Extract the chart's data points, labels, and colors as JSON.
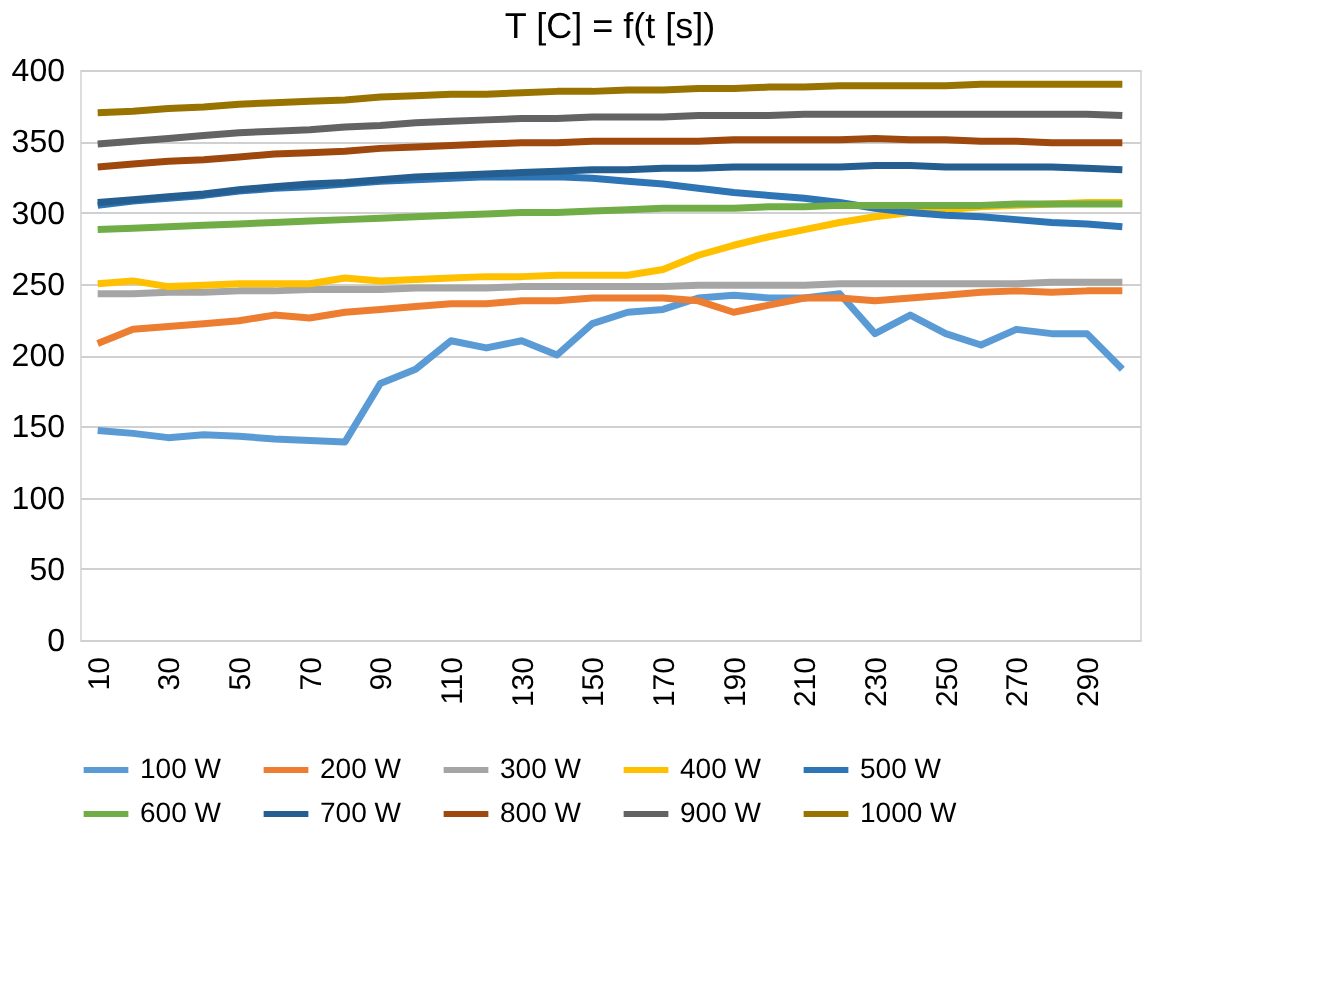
{
  "chart_data": {
    "type": "line",
    "title": "T [C] = f(t [s])",
    "categories": [
      "10",
      null,
      "30",
      null,
      "50",
      null,
      "70",
      null,
      "90",
      null,
      "110",
      null,
      "130",
      null,
      "150",
      null,
      "170",
      null,
      "190",
      null,
      "210",
      null,
      "230",
      null,
      "250",
      null,
      "270",
      null,
      "290",
      null
    ],
    "ylim": [
      0,
      400
    ],
    "yticks": [
      0,
      50,
      100,
      150,
      200,
      250,
      300,
      350,
      400
    ],
    "grid": "y",
    "legend": "bottom",
    "marker": "none",
    "line_style": "solid",
    "series": [
      {
        "name": "100 W",
        "color": "#5b9bd5",
        "values": [
          147,
          145,
          142,
          144,
          143,
          141,
          140,
          139,
          180,
          190,
          210,
          205,
          210,
          200,
          222,
          230,
          232,
          240,
          242,
          240,
          240,
          243,
          215,
          228,
          215,
          207,
          218,
          215,
          215,
          190
        ]
      },
      {
        "name": "200 W",
        "color": "#ed7d31",
        "values": [
          208,
          218,
          220,
          222,
          224,
          228,
          226,
          230,
          232,
          234,
          236,
          236,
          238,
          238,
          240,
          240,
          240,
          238,
          230,
          235,
          240,
          240,
          238,
          240,
          242,
          244,
          245,
          244,
          245,
          245
        ]
      },
      {
        "name": "300 W",
        "color": "#a5a5a5",
        "values": [
          243,
          243,
          244,
          244,
          245,
          245,
          246,
          246,
          246,
          247,
          247,
          247,
          248,
          248,
          248,
          248,
          248,
          249,
          249,
          249,
          249,
          250,
          250,
          250,
          250,
          250,
          250,
          251,
          251,
          251
        ]
      },
      {
        "name": "400 W",
        "color": "#ffc000",
        "values": [
          250,
          252,
          248,
          249,
          250,
          250,
          250,
          254,
          252,
          253,
          254,
          255,
          255,
          256,
          256,
          256,
          260,
          270,
          277,
          283,
          288,
          293,
          297,
          300,
          302,
          304,
          305,
          306,
          307,
          307
        ]
      },
      {
        "name": "500 W",
        "color": "#2e75b6",
        "values": [
          305,
          308,
          310,
          312,
          315,
          317,
          318,
          320,
          322,
          323,
          324,
          325,
          325,
          325,
          324,
          322,
          320,
          317,
          314,
          312,
          310,
          307,
          303,
          300,
          298,
          297,
          295,
          293,
          292,
          290
        ]
      },
      {
        "name": "600 W",
        "color": "#70ad47",
        "values": [
          288,
          289,
          290,
          291,
          292,
          293,
          294,
          295,
          296,
          297,
          298,
          299,
          300,
          300,
          301,
          302,
          303,
          303,
          303,
          304,
          304,
          305,
          305,
          305,
          305,
          305,
          306,
          306,
          306,
          306
        ]
      },
      {
        "name": "700 W",
        "color": "#255e91",
        "values": [
          307,
          309,
          311,
          313,
          316,
          318,
          320,
          321,
          323,
          325,
          326,
          327,
          328,
          329,
          330,
          330,
          331,
          331,
          332,
          332,
          332,
          332,
          333,
          333,
          332,
          332,
          332,
          332,
          331,
          330
        ]
      },
      {
        "name": "800 W",
        "color": "#9e480e",
        "values": [
          332,
          334,
          336,
          337,
          339,
          341,
          342,
          343,
          345,
          346,
          347,
          348,
          349,
          349,
          350,
          350,
          350,
          350,
          351,
          351,
          351,
          351,
          352,
          351,
          351,
          350,
          350,
          349,
          349,
          349
        ]
      },
      {
        "name": "900 W",
        "color": "#636363",
        "values": [
          348,
          350,
          352,
          354,
          356,
          357,
          358,
          360,
          361,
          363,
          364,
          365,
          366,
          366,
          367,
          367,
          367,
          368,
          368,
          368,
          369,
          369,
          369,
          369,
          369,
          369,
          369,
          369,
          369,
          368
        ]
      },
      {
        "name": "1000 W",
        "color": "#997300",
        "values": [
          370,
          371,
          373,
          374,
          376,
          377,
          378,
          379,
          381,
          382,
          383,
          383,
          384,
          385,
          385,
          386,
          386,
          387,
          387,
          388,
          388,
          389,
          389,
          389,
          389,
          390,
          390,
          390,
          390,
          390
        ]
      }
    ]
  }
}
